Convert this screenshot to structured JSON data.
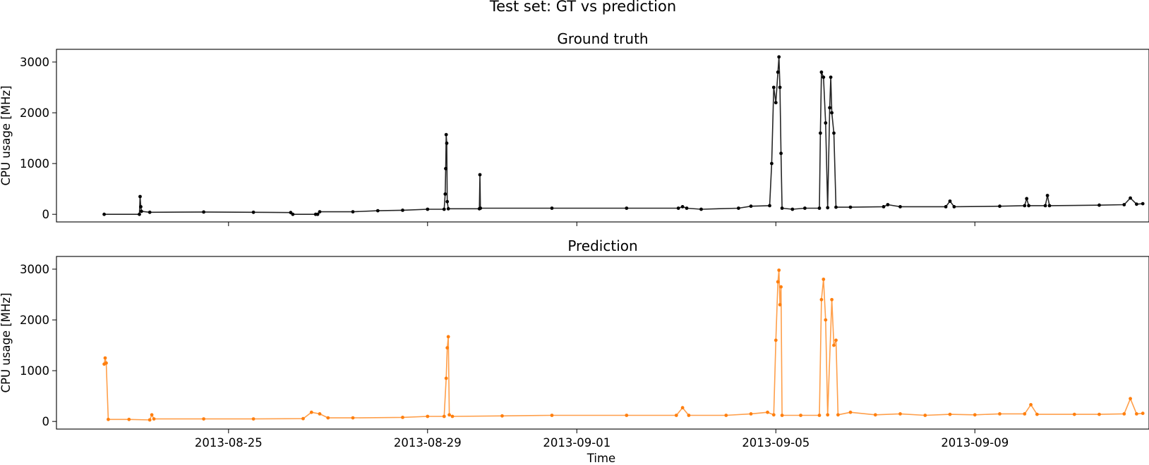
{
  "figure": {
    "title": "Test set: GT vs prediction",
    "xlabel": "Time"
  },
  "chart_data": [
    {
      "type": "line",
      "title": "Ground truth",
      "xlabel": "",
      "ylabel": "CPU usage [MHz]",
      "ylim": [
        -150,
        3250
      ],
      "yticks": [
        0,
        1000,
        2000,
        3000
      ],
      "xlim": [
        "2013-08-21T13:00",
        "2013-09-12T12:00"
      ],
      "xticks": [
        "2013-08-25",
        "2013-08-29",
        "2013-09-01",
        "2013-09-05",
        "2013-09-09"
      ],
      "show_xtick_labels": false,
      "grid": false,
      "color": "#000000",
      "series": [
        {
          "points": [
            [
              "2013-08-22T12:00",
              0
            ],
            [
              "2013-08-23T05:00",
              0
            ],
            [
              "2013-08-23T05:20",
              350
            ],
            [
              "2013-08-23T05:40",
              150
            ],
            [
              "2013-08-23T06:00",
              60
            ],
            [
              "2013-08-23T10:00",
              40
            ],
            [
              "2013-08-24T12:00",
              45
            ],
            [
              "2013-08-25T12:00",
              40
            ],
            [
              "2013-08-26T06:00",
              35
            ],
            [
              "2013-08-26T07:00",
              0
            ],
            [
              "2013-08-26T18:00",
              0
            ],
            [
              "2013-08-26T19:00",
              0
            ],
            [
              "2013-08-26T20:00",
              50
            ],
            [
              "2013-08-27T12:00",
              50
            ],
            [
              "2013-08-28T00:00",
              70
            ],
            [
              "2013-08-28T12:00",
              80
            ],
            [
              "2013-08-29T00:00",
              100
            ],
            [
              "2013-08-29T08:00",
              100
            ],
            [
              "2013-08-29T08:30",
              400
            ],
            [
              "2013-08-29T08:45",
              900
            ],
            [
              "2013-08-29T09:00",
              1570
            ],
            [
              "2013-08-29T09:15",
              1400
            ],
            [
              "2013-08-29T09:30",
              250
            ],
            [
              "2013-08-29T10:00",
              110
            ],
            [
              "2013-08-30T01:00",
              110
            ],
            [
              "2013-08-30T01:15",
              780
            ],
            [
              "2013-08-30T01:30",
              120
            ],
            [
              "2013-08-31T12:00",
              120
            ],
            [
              "2013-09-02T00:00",
              120
            ],
            [
              "2013-09-03T01:00",
              120
            ],
            [
              "2013-09-03T03:00",
              150
            ],
            [
              "2013-09-03T05:00",
              120
            ],
            [
              "2013-09-03T12:00",
              100
            ],
            [
              "2013-09-04T06:00",
              120
            ],
            [
              "2013-09-04T12:00",
              160
            ],
            [
              "2013-09-04T21:00",
              170
            ],
            [
              "2013-09-04T22:00",
              1000
            ],
            [
              "2013-09-04T23:00",
              2500
            ],
            [
              "2013-09-05T00:00",
              2200
            ],
            [
              "2013-09-05T01:00",
              2800
            ],
            [
              "2013-09-05T01:30",
              3100
            ],
            [
              "2013-09-05T02:00",
              2500
            ],
            [
              "2013-09-05T02:30",
              1200
            ],
            [
              "2013-09-05T03:00",
              120
            ],
            [
              "2013-09-05T08:00",
              100
            ],
            [
              "2013-09-05T14:00",
              120
            ],
            [
              "2013-09-05T21:00",
              120
            ],
            [
              "2013-09-05T21:30",
              1600
            ],
            [
              "2013-09-05T22:00",
              2800
            ],
            [
              "2013-09-05T23:00",
              2700
            ],
            [
              "2013-09-06T00:00",
              1800
            ],
            [
              "2013-09-06T01:00",
              130
            ],
            [
              "2013-09-06T02:00",
              2100
            ],
            [
              "2013-09-06T02:30",
              2700
            ],
            [
              "2013-09-06T03:00",
              2000
            ],
            [
              "2013-09-06T04:00",
              1600
            ],
            [
              "2013-09-06T05:00",
              140
            ],
            [
              "2013-09-06T12:00",
              140
            ],
            [
              "2013-09-07T04:00",
              150
            ],
            [
              "2013-09-07T06:00",
              190
            ],
            [
              "2013-09-07T12:00",
              150
            ],
            [
              "2013-09-08T10:00",
              150
            ],
            [
              "2013-09-08T12:00",
              260
            ],
            [
              "2013-09-08T14:00",
              150
            ],
            [
              "2013-09-09T12:00",
              160
            ],
            [
              "2013-09-10T00:00",
              170
            ],
            [
              "2013-09-10T01:00",
              310
            ],
            [
              "2013-09-10T02:00",
              170
            ],
            [
              "2013-09-10T10:00",
              170
            ],
            [
              "2013-09-10T11:00",
              370
            ],
            [
              "2013-09-10T12:00",
              170
            ],
            [
              "2013-09-11T12:00",
              180
            ],
            [
              "2013-09-12T00:00",
              190
            ],
            [
              "2013-09-12T03:00",
              320
            ],
            [
              "2013-09-12T06:00",
              200
            ],
            [
              "2013-09-12T09:00",
              210
            ]
          ]
        }
      ]
    },
    {
      "type": "line",
      "title": "Prediction",
      "xlabel": "Time",
      "ylabel": "CPU usage [MHz]",
      "ylim": [
        -150,
        3250
      ],
      "yticks": [
        0,
        1000,
        2000,
        3000
      ],
      "xlim": [
        "2013-08-21T13:00",
        "2013-09-12T12:00"
      ],
      "xticks": [
        "2013-08-25",
        "2013-08-29",
        "2013-09-01",
        "2013-09-05",
        "2013-09-09"
      ],
      "show_xtick_labels": true,
      "grid": false,
      "color": "#ff7f0e",
      "series": [
        {
          "points": [
            [
              "2013-08-22T12:00",
              1130
            ],
            [
              "2013-08-22T12:30",
              1250
            ],
            [
              "2013-08-22T13:00",
              1150
            ],
            [
              "2013-08-22T14:00",
              40
            ],
            [
              "2013-08-23T00:00",
              40
            ],
            [
              "2013-08-23T10:00",
              30
            ],
            [
              "2013-08-23T11:00",
              130
            ],
            [
              "2013-08-23T12:00",
              50
            ],
            [
              "2013-08-24T12:00",
              50
            ],
            [
              "2013-08-25T12:00",
              50
            ],
            [
              "2013-08-26T12:00",
              55
            ],
            [
              "2013-08-26T16:00",
              180
            ],
            [
              "2013-08-26T20:00",
              150
            ],
            [
              "2013-08-27T00:00",
              70
            ],
            [
              "2013-08-27T12:00",
              70
            ],
            [
              "2013-08-28T12:00",
              80
            ],
            [
              "2013-08-29T00:00",
              100
            ],
            [
              "2013-08-29T08:00",
              100
            ],
            [
              "2013-08-29T09:00",
              850
            ],
            [
              "2013-08-29T09:30",
              1450
            ],
            [
              "2013-08-29T10:00",
              1670
            ],
            [
              "2013-08-29T10:30",
              130
            ],
            [
              "2013-08-29T12:00",
              100
            ],
            [
              "2013-08-30T12:00",
              110
            ],
            [
              "2013-08-31T12:00",
              120
            ],
            [
              "2013-09-02T00:00",
              120
            ],
            [
              "2013-09-03T00:00",
              120
            ],
            [
              "2013-09-03T03:00",
              270
            ],
            [
              "2013-09-03T06:00",
              120
            ],
            [
              "2013-09-04T00:00",
              120
            ],
            [
              "2013-09-04T12:00",
              150
            ],
            [
              "2013-09-04T20:00",
              180
            ],
            [
              "2013-09-04T23:00",
              130
            ],
            [
              "2013-09-05T00:00",
              1600
            ],
            [
              "2013-09-05T01:00",
              2750
            ],
            [
              "2013-09-05T01:30",
              2980
            ],
            [
              "2013-09-05T02:00",
              2300
            ],
            [
              "2013-09-05T02:30",
              2650
            ],
            [
              "2013-09-05T03:00",
              120
            ],
            [
              "2013-09-05T12:00",
              120
            ],
            [
              "2013-09-05T21:00",
              120
            ],
            [
              "2013-09-05T22:00",
              2400
            ],
            [
              "2013-09-05T23:00",
              2800
            ],
            [
              "2013-09-06T00:00",
              2000
            ],
            [
              "2013-09-06T01:00",
              130
            ],
            [
              "2013-09-06T03:00",
              2400
            ],
            [
              "2013-09-06T04:00",
              1500
            ],
            [
              "2013-09-06T05:00",
              1600
            ],
            [
              "2013-09-06T06:00",
              130
            ],
            [
              "2013-09-06T12:00",
              180
            ],
            [
              "2013-09-07T00:00",
              130
            ],
            [
              "2013-09-07T12:00",
              150
            ],
            [
              "2013-09-08T00:00",
              120
            ],
            [
              "2013-09-08T12:00",
              140
            ],
            [
              "2013-09-09T00:00",
              130
            ],
            [
              "2013-09-09T12:00",
              150
            ],
            [
              "2013-09-10T00:00",
              150
            ],
            [
              "2013-09-10T03:00",
              330
            ],
            [
              "2013-09-10T06:00",
              140
            ],
            [
              "2013-09-11T00:00",
              140
            ],
            [
              "2013-09-11T12:00",
              140
            ],
            [
              "2013-09-12T00:00",
              150
            ],
            [
              "2013-09-12T03:00",
              450
            ],
            [
              "2013-09-12T06:00",
              150
            ],
            [
              "2013-09-12T09:00",
              160
            ]
          ]
        }
      ]
    }
  ]
}
